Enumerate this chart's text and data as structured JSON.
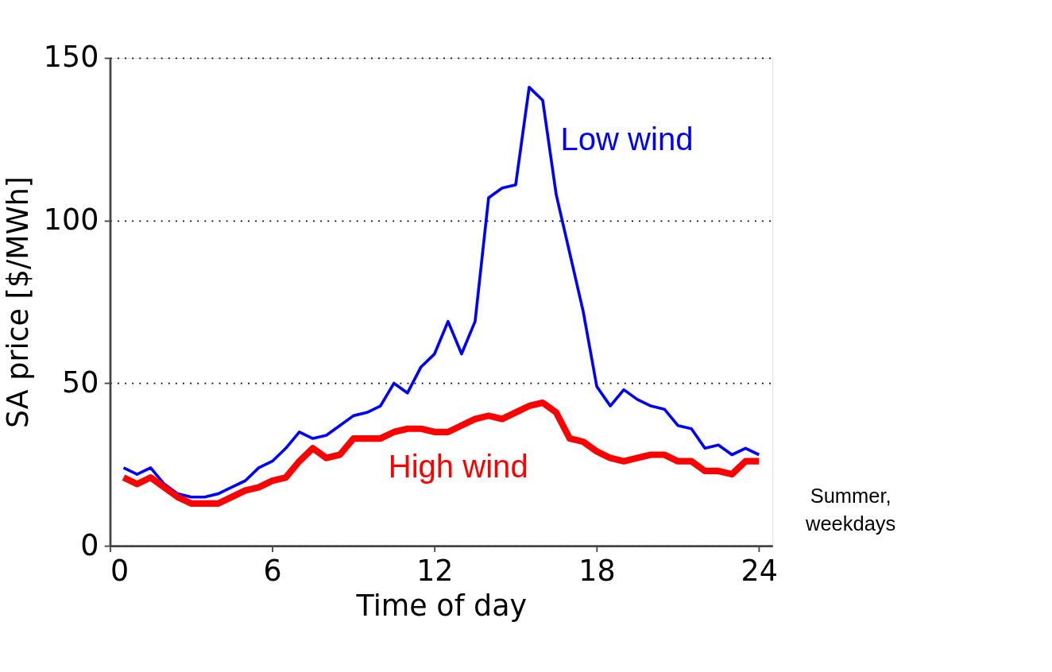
{
  "chart_data": {
    "type": "line",
    "xlabel": "Time of day",
    "ylabel": "SA price [$/MWh]",
    "x": [
      0.5,
      1,
      1.5,
      2,
      2.5,
      3,
      3.5,
      4,
      4.5,
      5,
      5.5,
      6,
      6.5,
      7,
      7.5,
      8,
      8.5,
      9,
      9.5,
      10,
      10.5,
      11,
      11.5,
      12,
      12.5,
      13,
      13.5,
      14,
      14.5,
      15,
      15.5,
      16,
      16.5,
      17,
      17.5,
      18,
      18.5,
      19,
      19.5,
      20,
      20.5,
      21,
      21.5,
      22,
      22.5,
      23,
      23.5,
      24
    ],
    "series": [
      {
        "name": "Low wind",
        "color": "#0000ff",
        "values": [
          24,
          22,
          24,
          19,
          16,
          15,
          15,
          16,
          18,
          20,
          24,
          26,
          30,
          35,
          33,
          34,
          37,
          40,
          41,
          43,
          50,
          47,
          55,
          59,
          69,
          59,
          69,
          107,
          110,
          111,
          141,
          137,
          108,
          90,
          72,
          49,
          43,
          48,
          45,
          43,
          42,
          37,
          36,
          30,
          31,
          28,
          30,
          28
        ]
      },
      {
        "name": "High wind",
        "color": "#ff0000",
        "values": [
          21,
          19,
          21,
          18,
          15,
          13,
          13,
          13,
          15,
          17,
          18,
          20,
          21,
          26,
          30,
          27,
          28,
          33,
          33,
          33,
          35,
          36,
          36,
          35,
          35,
          37,
          39,
          40,
          39,
          41,
          43,
          44,
          41,
          33,
          32,
          29,
          27,
          26,
          27,
          28,
          28,
          26,
          26,
          23,
          23,
          22,
          26,
          26
        ]
      }
    ],
    "xlim": [
      0,
      24.5
    ],
    "xticks": [
      0,
      6,
      12,
      18,
      24
    ],
    "ylim": [
      0,
      150
    ],
    "yticks": [
      0,
      50,
      100,
      150
    ],
    "grid": "y",
    "annotations": [
      "Summer, weekdays"
    ]
  }
}
